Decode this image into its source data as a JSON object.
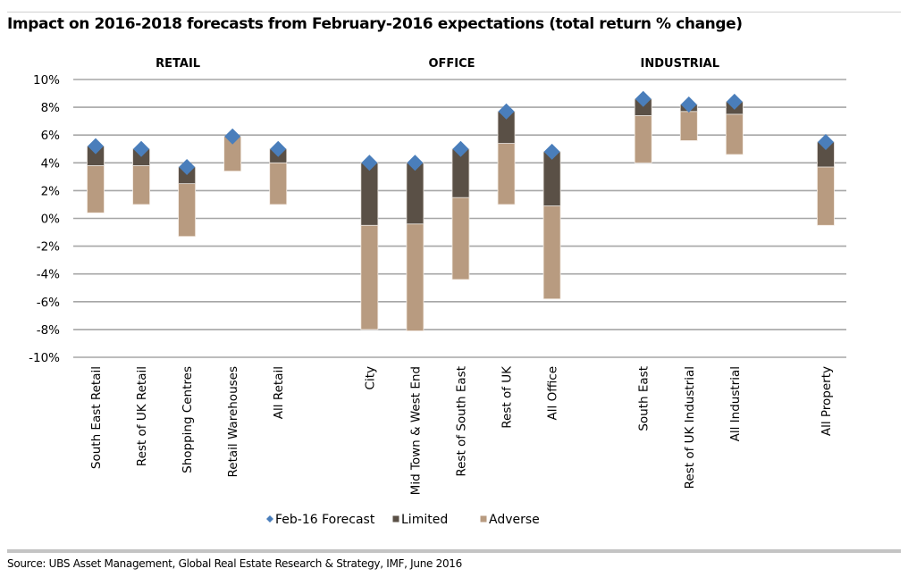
{
  "header": {
    "title": "Impact on 2016-2018 forecasts from February-2016 expectations (total return % change)"
  },
  "footer": {
    "source": "Source: UBS Asset Management, Global Real Estate Research & Strategy, IMF, June 2016"
  },
  "chart_data": {
    "type": "bar",
    "subtype": "floating-stacked-range-with-markers",
    "title": "Impact on 2016-2018 forecasts from February-2016 expectations (total return % change)",
    "xlabel": "",
    "ylabel": "",
    "ylim": [
      -10,
      10
    ],
    "ytick_step": 2,
    "ytick_labels": [
      "10%",
      "8%",
      "6%",
      "4%",
      "2%",
      "0%",
      "-2%",
      "-4%",
      "-6%",
      "-8%",
      "-10%"
    ],
    "grid": true,
    "legend_position": "bottom",
    "groups": [
      {
        "label": "RETAIL",
        "categories": [
          "South East Retail",
          "Rest of UK Retail",
          "Shopping Centres",
          "Retail Warehouses",
          "All Retail"
        ]
      },
      {
        "label": "OFFICE",
        "categories": [
          "City",
          "Mid Town & West End",
          "Rest of South East",
          "Rest of UK",
          "All Office"
        ]
      },
      {
        "label": "INDUSTRIAL",
        "categories": [
          "South East",
          "Rest of UK Industrial",
          "All Industrial"
        ]
      },
      {
        "label": "",
        "categories": [
          "All Property"
        ]
      }
    ],
    "categories": [
      "South East Retail",
      "Rest of UK Retail",
      "Shopping Centres",
      "Retail Warehouses",
      "All Retail",
      "City",
      "Mid Town & West End",
      "Rest of South East",
      "Rest of UK",
      "All Office",
      "South East",
      "Rest of UK Industrial",
      "All Industrial",
      "All Property"
    ],
    "series": [
      {
        "name": "Feb-16 Forecast",
        "kind": "marker",
        "color": "#4a7ebb",
        "values": [
          5.2,
          5.0,
          3.7,
          5.9,
          5.0,
          4.0,
          4.0,
          5.0,
          7.7,
          4.8,
          8.6,
          8.2,
          8.4,
          5.5
        ]
      },
      {
        "name": "Limited",
        "kind": "range-upper",
        "color": "#5a5046",
        "values": [
          3.8,
          3.8,
          2.5,
          5.9,
          4.0,
          -0.5,
          -0.4,
          1.5,
          5.4,
          0.9,
          7.4,
          7.7,
          7.5,
          3.7
        ]
      },
      {
        "name": "Adverse",
        "kind": "range-lower",
        "color": "#b89b80",
        "values": [
          0.4,
          1.0,
          -1.3,
          3.4,
          1.0,
          -8.0,
          -8.1,
          -4.4,
          1.0,
          -5.8,
          4.0,
          5.6,
          4.6,
          -0.5
        ]
      }
    ],
    "notes": "Dark 'Limited' bar spans from Limited value up to Feb-16 Forecast; tan 'Adverse' bar spans from Adverse value up to Limited value.",
    "legend": [
      {
        "label": "Feb-16 Forecast",
        "symbol": "diamond",
        "color": "#4a7ebb"
      },
      {
        "label": "Limited",
        "symbol": "square",
        "color": "#5a5046"
      },
      {
        "label": "Adverse",
        "symbol": "square",
        "color": "#b89b80"
      }
    ],
    "colors": {
      "gridline": "#a6a6a6"
    }
  }
}
